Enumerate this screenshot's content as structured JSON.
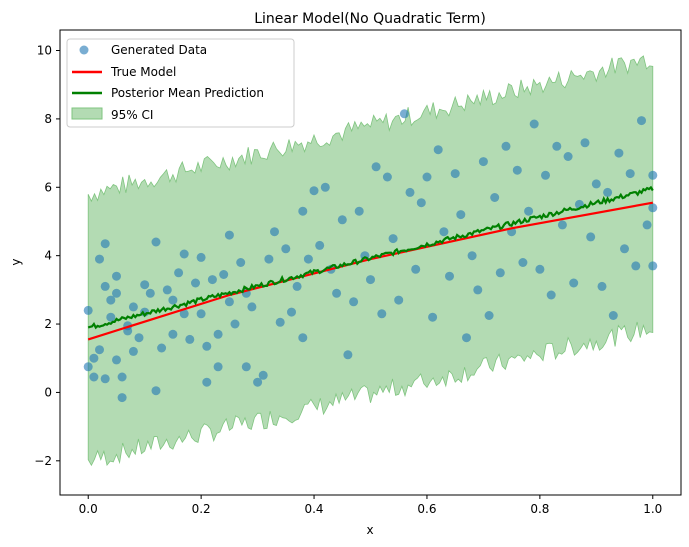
{
  "chart_data": {
    "type": "scatter",
    "title": "Linear Model(No Quadratic Term)",
    "xlabel": "x",
    "ylabel": "y",
    "xlim": [
      -0.05,
      1.05
    ],
    "ylim": [
      -3.0,
      10.6
    ],
    "xticks": [
      0.0,
      0.2,
      0.4,
      0.6,
      0.8,
      1.0
    ],
    "xtick_labels": [
      "0.0",
      "0.2",
      "0.4",
      "0.6",
      "0.8",
      "1.0"
    ],
    "yticks": [
      -2,
      0,
      2,
      4,
      6,
      8,
      10
    ],
    "ytick_labels": [
      "−2",
      "0",
      "2",
      "4",
      "6",
      "8",
      "10"
    ],
    "grid": false,
    "legend_position": "top-left",
    "legend": [
      "Generated Data",
      "True Model",
      "Posterior Mean Prediction",
      "95% CI"
    ],
    "colors": {
      "points": "#1f77b4",
      "true_model": "#ff0000",
      "posterior_mean": "#008000",
      "ci_fill": "#b3dbb3",
      "ci_edge": "#7fc47f"
    },
    "true_model": {
      "x": [
        0.0,
        0.25,
        0.5,
        0.75,
        1.0
      ],
      "y": [
        1.55,
        2.85,
        3.9,
        4.8,
        5.55
      ]
    },
    "posterior_mean": {
      "x": [
        0.0,
        1.0
      ],
      "y": [
        1.9,
        5.95
      ]
    },
    "ci": {
      "x": [
        0.0,
        1.0
      ],
      "lower": [
        -2.0,
        1.9
      ],
      "upper": [
        5.8,
        9.8
      ]
    },
    "points": [
      [
        0.0,
        2.4
      ],
      [
        0.0,
        0.75
      ],
      [
        0.01,
        1.0
      ],
      [
        0.01,
        0.45
      ],
      [
        0.02,
        1.25
      ],
      [
        0.02,
        3.9
      ],
      [
        0.03,
        3.1
      ],
      [
        0.03,
        4.35
      ],
      [
        0.03,
        0.4
      ],
      [
        0.04,
        2.7
      ],
      [
        0.04,
        2.2
      ],
      [
        0.05,
        3.4
      ],
      [
        0.05,
        2.9
      ],
      [
        0.05,
        0.95
      ],
      [
        0.06,
        0.45
      ],
      [
        0.06,
        -0.15
      ],
      [
        0.07,
        1.95
      ],
      [
        0.07,
        1.8
      ],
      [
        0.08,
        2.5
      ],
      [
        0.08,
        1.2
      ],
      [
        0.09,
        1.6
      ],
      [
        0.1,
        3.15
      ],
      [
        0.1,
        2.35
      ],
      [
        0.11,
        2.9
      ],
      [
        0.12,
        4.4
      ],
      [
        0.12,
        0.05
      ],
      [
        0.13,
        1.3
      ],
      [
        0.14,
        3.0
      ],
      [
        0.15,
        2.7
      ],
      [
        0.15,
        1.7
      ],
      [
        0.16,
        3.5
      ],
      [
        0.17,
        2.3
      ],
      [
        0.17,
        4.05
      ],
      [
        0.18,
        1.55
      ],
      [
        0.19,
        3.2
      ],
      [
        0.2,
        2.3
      ],
      [
        0.2,
        3.95
      ],
      [
        0.21,
        0.3
      ],
      [
        0.21,
        1.35
      ],
      [
        0.22,
        3.3
      ],
      [
        0.23,
        0.75
      ],
      [
        0.23,
        1.7
      ],
      [
        0.24,
        3.45
      ],
      [
        0.25,
        4.6
      ],
      [
        0.25,
        2.65
      ],
      [
        0.26,
        2.0
      ],
      [
        0.27,
        3.8
      ],
      [
        0.28,
        0.75
      ],
      [
        0.28,
        2.9
      ],
      [
        0.29,
        2.5
      ],
      [
        0.3,
        0.3
      ],
      [
        0.31,
        0.5
      ],
      [
        0.32,
        3.9
      ],
      [
        0.33,
        4.7
      ],
      [
        0.34,
        2.05
      ],
      [
        0.35,
        4.2
      ],
      [
        0.36,
        2.35
      ],
      [
        0.37,
        3.1
      ],
      [
        0.38,
        5.3
      ],
      [
        0.38,
        1.6
      ],
      [
        0.39,
        3.9
      ],
      [
        0.4,
        5.9
      ],
      [
        0.41,
        4.3
      ],
      [
        0.42,
        6.0
      ],
      [
        0.43,
        3.6
      ],
      [
        0.44,
        2.9
      ],
      [
        0.45,
        5.05
      ],
      [
        0.46,
        1.1
      ],
      [
        0.47,
        2.65
      ],
      [
        0.48,
        5.3
      ],
      [
        0.49,
        4.0
      ],
      [
        0.5,
        3.3
      ],
      [
        0.51,
        6.6
      ],
      [
        0.52,
        2.3
      ],
      [
        0.53,
        6.3
      ],
      [
        0.54,
        4.5
      ],
      [
        0.55,
        2.7
      ],
      [
        0.56,
        8.15
      ],
      [
        0.57,
        5.85
      ],
      [
        0.58,
        3.6
      ],
      [
        0.59,
        5.55
      ],
      [
        0.6,
        6.3
      ],
      [
        0.61,
        2.2
      ],
      [
        0.62,
        7.1
      ],
      [
        0.63,
        4.7
      ],
      [
        0.64,
        3.4
      ],
      [
        0.65,
        6.4
      ],
      [
        0.66,
        5.2
      ],
      [
        0.67,
        1.6
      ],
      [
        0.68,
        4.0
      ],
      [
        0.69,
        3.0
      ],
      [
        0.7,
        6.75
      ],
      [
        0.71,
        2.25
      ],
      [
        0.72,
        5.7
      ],
      [
        0.73,
        3.5
      ],
      [
        0.74,
        7.2
      ],
      [
        0.75,
        4.7
      ],
      [
        0.76,
        6.5
      ],
      [
        0.77,
        3.8
      ],
      [
        0.78,
        5.3
      ],
      [
        0.79,
        7.85
      ],
      [
        0.8,
        3.6
      ],
      [
        0.81,
        6.35
      ],
      [
        0.82,
        2.85
      ],
      [
        0.83,
        7.2
      ],
      [
        0.84,
        4.9
      ],
      [
        0.85,
        6.9
      ],
      [
        0.86,
        3.2
      ],
      [
        0.87,
        5.5
      ],
      [
        0.88,
        7.3
      ],
      [
        0.89,
        4.55
      ],
      [
        0.9,
        6.1
      ],
      [
        0.91,
        3.1
      ],
      [
        0.92,
        5.85
      ],
      [
        0.93,
        2.25
      ],
      [
        0.94,
        7.0
      ],
      [
        0.95,
        4.2
      ],
      [
        0.96,
        6.4
      ],
      [
        0.97,
        3.7
      ],
      [
        0.98,
        7.95
      ],
      [
        0.99,
        4.9
      ],
      [
        1.0,
        6.35
      ],
      [
        1.0,
        3.7
      ],
      [
        1.0,
        5.4
      ]
    ]
  }
}
